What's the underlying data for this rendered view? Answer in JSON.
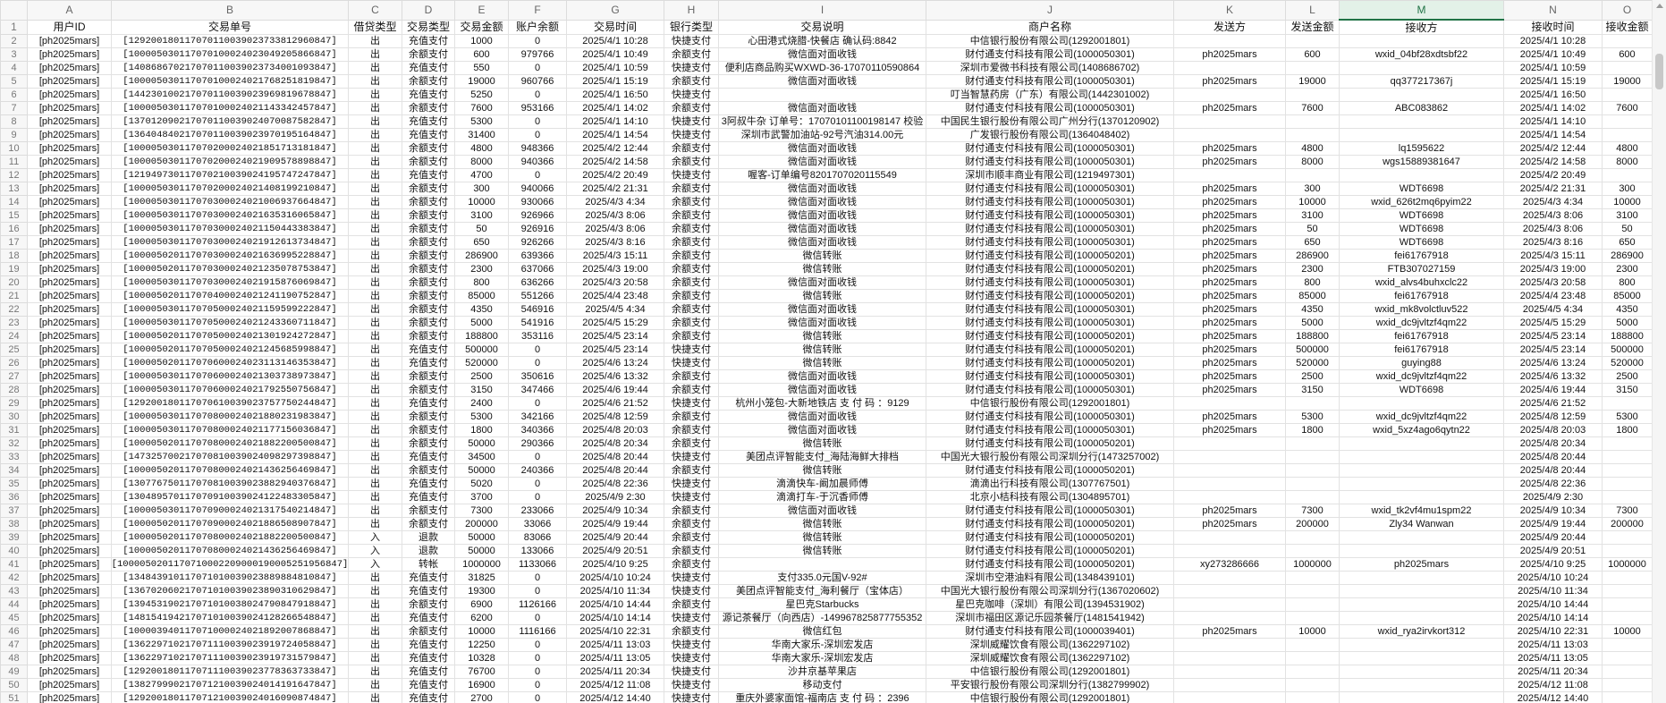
{
  "columns": [
    "A",
    "B",
    "C",
    "D",
    "E",
    "F",
    "G",
    "H",
    "I",
    "J",
    "K",
    "L",
    "M",
    "N",
    "O"
  ],
  "selected_column": "M",
  "accent_color": "#217346",
  "headers": [
    "用户ID",
    "交易单号",
    "借贷类型",
    "交易类型",
    "交易金额",
    "账户余额",
    "交易时间",
    "银行类型",
    "交易说明",
    "商户名称",
    "发送方",
    "发送金额",
    "接收方",
    "接收时间",
    "接收金额"
  ],
  "rows": [
    [
      "[ph2025mars]",
      "[129200180117070110039023733812960847]",
      "出",
      "充值支付",
      "1000",
      "0",
      "2025/4/1 10:28",
      "快捷支付",
      "心田港式烧腊-快餐店 确认码:8842",
      "中信银行股份有限公司(1292001801)",
      "",
      "",
      "",
      "2025/4/1 10:28",
      ""
    ],
    [
      "[ph2025mars]",
      "[100005030117070100024023049205866847]",
      "出",
      "余额支付",
      "600",
      "979766",
      "2025/4/1 10:49",
      "余额支付",
      "微信面对面收钱",
      "财付通支付科技有限公司(1000050301)",
      "ph2025mars",
      "600",
      "wxid_04bf28xdtsbf22",
      "2025/4/1 10:49",
      "600"
    ],
    [
      "[ph2025mars]",
      "[140868670217070110039023734001093847]",
      "出",
      "充值支付",
      "550",
      "0",
      "2025/4/1 10:59",
      "快捷支付",
      "便利店商品购买WXWD-36-17070110590864",
      "深圳市爱微书科技有限公司(1408686702)",
      "",
      "",
      "",
      "2025/4/1 10:59",
      ""
    ],
    [
      "[ph2025mars]",
      "[100005030117070100024021768251819847]",
      "出",
      "余额支付",
      "19000",
      "960766",
      "2025/4/1 15:19",
      "余额支付",
      "微信面对面收钱",
      "财付通支付科技有限公司(1000050301)",
      "ph2025mars",
      "19000",
      "qq377217367j",
      "2025/4/1 15:19",
      "19000"
    ],
    [
      "[ph2025mars]",
      "[144230100217070110039023969819678847]",
      "出",
      "充值支付",
      "5250",
      "0",
      "2025/4/1 16:50",
      "快捷支付",
      "",
      "叮当智慧药房（广东）有限公司(1442301002)",
      "",
      "",
      "",
      "2025/4/1 16:50",
      ""
    ],
    [
      "[ph2025mars]",
      "[100005030117070100024021143342457847]",
      "出",
      "余额支付",
      "7600",
      "953166",
      "2025/4/1 14:02",
      "余额支付",
      "微信面对面收钱",
      "财付通支付科技有限公司(1000050301)",
      "ph2025mars",
      "7600",
      "ABC083862",
      "2025/4/1 14:02",
      "7600"
    ],
    [
      "[ph2025mars]",
      "[137012090217070110039024070087582847]",
      "出",
      "充值支付",
      "5300",
      "0",
      "2025/4/1 14:10",
      "快捷支付",
      "3阿叔牛杂 订单号：17070101100198147 校验",
      "中国民生银行股份有限公司广州分行(1370120902)",
      "",
      "",
      "",
      "2025/4/1 14:10",
      ""
    ],
    [
      "[ph2025mars]",
      "[136404840217070110039023970195164847]",
      "出",
      "充值支付",
      "31400",
      "0",
      "2025/4/1 14:54",
      "快捷支付",
      "深圳市武警加油站-92号汽油314.00元",
      "广发银行股份有限公司(1364048402)",
      "",
      "",
      "",
      "2025/4/1 14:54",
      ""
    ],
    [
      "[ph2025mars]",
      "[100005030117070200024021851713181847]",
      "出",
      "余额支付",
      "4800",
      "948366",
      "2025/4/2 12:44",
      "余额支付",
      "微信面对面收钱",
      "财付通支付科技有限公司(1000050301)",
      "ph2025mars",
      "4800",
      "lq1595622",
      "2025/4/2 12:44",
      "4800"
    ],
    [
      "[ph2025mars]",
      "[100005030117070200024021909578898847]",
      "出",
      "余额支付",
      "8000",
      "940366",
      "2025/4/2 14:58",
      "余额支付",
      "微信面对面收钱",
      "财付通支付科技有限公司(1000050301)",
      "ph2025mars",
      "8000",
      "wgs15889381647",
      "2025/4/2 14:58",
      "8000"
    ],
    [
      "[ph2025mars]",
      "[121949730117070210039024195747247847]",
      "出",
      "充值支付",
      "4700",
      "0",
      "2025/4/2 20:49",
      "快捷支付",
      "喔客-订单编号8201707020115549",
      "深圳市顺丰商业有限公司(1219497301)",
      "",
      "",
      "",
      "2025/4/2 20:49",
      ""
    ],
    [
      "[ph2025mars]",
      "[100005030117070200024021408199210847]",
      "出",
      "余额支付",
      "300",
      "940066",
      "2025/4/2 21:31",
      "余额支付",
      "微信面对面收钱",
      "财付通支付科技有限公司(1000050301)",
      "ph2025mars",
      "300",
      "WDT6698",
      "2025/4/2 21:31",
      "300"
    ],
    [
      "[ph2025mars]",
      "[100005030117070300024021006937664847]",
      "出",
      "余额支付",
      "10000",
      "930066",
      "2025/4/3 4:34",
      "余额支付",
      "微信面对面收钱",
      "财付通支付科技有限公司(1000050301)",
      "ph2025mars",
      "10000",
      "wxid_626t2mq6pyim22",
      "2025/4/3 4:34",
      "10000"
    ],
    [
      "[ph2025mars]",
      "[100005030117070300024021635316065847]",
      "出",
      "余额支付",
      "3100",
      "926966",
      "2025/4/3 8:06",
      "余额支付",
      "微信面对面收钱",
      "财付通支付科技有限公司(1000050301)",
      "ph2025mars",
      "3100",
      "WDT6698",
      "2025/4/3 8:06",
      "3100"
    ],
    [
      "[ph2025mars]",
      "[100005030117070300024021150443383847]",
      "出",
      "余额支付",
      "50",
      "926916",
      "2025/4/3 8:06",
      "余额支付",
      "微信面对面收钱",
      "财付通支付科技有限公司(1000050301)",
      "ph2025mars",
      "50",
      "WDT6698",
      "2025/4/3 8:06",
      "50"
    ],
    [
      "[ph2025mars]",
      "[100005030117070300024021912613734847]",
      "出",
      "余额支付",
      "650",
      "926266",
      "2025/4/3 8:16",
      "余额支付",
      "微信面对面收钱",
      "财付通支付科技有限公司(1000050301)",
      "ph2025mars",
      "650",
      "WDT6698",
      "2025/4/3 8:16",
      "650"
    ],
    [
      "[ph2025mars]",
      "[100005020117070300024021636995228847]",
      "出",
      "余额支付",
      "286900",
      "639366",
      "2025/4/3 15:11",
      "余额支付",
      "微信转账",
      "财付通支付科技有限公司(1000050201)",
      "ph2025mars",
      "286900",
      "fei61767918",
      "2025/4/3 15:11",
      "286900"
    ],
    [
      "[ph2025mars]",
      "[100005020117070300024021235078753847]",
      "出",
      "余额支付",
      "2300",
      "637066",
      "2025/4/3 19:00",
      "余额支付",
      "微信转账",
      "财付通支付科技有限公司(1000050201)",
      "ph2025mars",
      "2300",
      "FTB307027159",
      "2025/4/3 19:00",
      "2300"
    ],
    [
      "[ph2025mars]",
      "[100005030117070300024021915876069847]",
      "出",
      "余额支付",
      "800",
      "636266",
      "2025/4/3 20:58",
      "余额支付",
      "微信面对面收钱",
      "财付通支付科技有限公司(1000050301)",
      "ph2025mars",
      "800",
      "wxid_alvs4buhxclc22",
      "2025/4/3 20:58",
      "800"
    ],
    [
      "[ph2025mars]",
      "[100005020117070400024021241190752847]",
      "出",
      "余额支付",
      "85000",
      "551266",
      "2025/4/4 23:48",
      "余额支付",
      "微信转账",
      "财付通支付科技有限公司(1000050201)",
      "ph2025mars",
      "85000",
      "fei61767918",
      "2025/4/4 23:48",
      "85000"
    ],
    [
      "[ph2025mars]",
      "[100005030117070500024021159599222847]",
      "出",
      "余额支付",
      "4350",
      "546916",
      "2025/4/5 4:34",
      "余额支付",
      "微信面对面收钱",
      "财付通支付科技有限公司(1000050301)",
      "ph2025mars",
      "4350",
      "wxid_mk8volctluv522",
      "2025/4/5 4:34",
      "4350"
    ],
    [
      "[ph2025mars]",
      "[100005030117070500024021243360711847]",
      "出",
      "余额支付",
      "5000",
      "541916",
      "2025/4/5 15:29",
      "余额支付",
      "微信面对面收钱",
      "财付通支付科技有限公司(1000050301)",
      "ph2025mars",
      "5000",
      "wxid_dc9jvltzf4qm22",
      "2025/4/5 15:29",
      "5000"
    ],
    [
      "[ph2025mars]",
      "[100005020117070500024021301924272847]",
      "出",
      "余额支付",
      "188800",
      "353116",
      "2025/4/5 23:14",
      "余额支付",
      "微信转账",
      "财付通支付科技有限公司(1000050201)",
      "ph2025mars",
      "188800",
      "fei61767918",
      "2025/4/5 23:14",
      "188800"
    ],
    [
      "[ph2025mars]",
      "[100005020117070500024021245685998847]",
      "出",
      "充值支付",
      "500000",
      "0",
      "2025/4/5 23:14",
      "快捷支付",
      "微信转账",
      "财付通支付科技有限公司(1000050201)",
      "ph2025mars",
      "500000",
      "fei61767918",
      "2025/4/5 23:14",
      "500000"
    ],
    [
      "[ph2025mars]",
      "[100005020117070600024023113146353847]",
      "出",
      "充值支付",
      "520000",
      "0",
      "2025/4/6 13:24",
      "快捷支付",
      "微信转账",
      "财付通支付科技有限公司(1000050201)",
      "ph2025mars",
      "520000",
      "guying88",
      "2025/4/6 13:24",
      "520000"
    ],
    [
      "[ph2025mars]",
      "[100005030117070600024021303738973847]",
      "出",
      "余额支付",
      "2500",
      "350616",
      "2025/4/6 13:32",
      "余额支付",
      "微信面对面收钱",
      "财付通支付科技有限公司(1000050301)",
      "ph2025mars",
      "2500",
      "wxid_dc9jvltzf4qm22",
      "2025/4/6 13:32",
      "2500"
    ],
    [
      "[ph2025mars]",
      "[100005030117070600024021792550756847]",
      "出",
      "余额支付",
      "3150",
      "347466",
      "2025/4/6 19:44",
      "余额支付",
      "微信面对面收钱",
      "财付通支付科技有限公司(1000050301)",
      "ph2025mars",
      "3150",
      "WDT6698",
      "2025/4/6 19:44",
      "3150"
    ],
    [
      "[ph2025mars]",
      "[129200180117070610039023757750244847]",
      "出",
      "充值支付",
      "2400",
      "0",
      "2025/4/6 21:52",
      "快捷支付",
      "杭州小笼包-大新地铁店 支 付 码 ：9129",
      "中信银行股份有限公司(1292001801)",
      "",
      "",
      "",
      "2025/4/6 21:52",
      ""
    ],
    [
      "[ph2025mars]",
      "[100005030117070800024021880231983847]",
      "出",
      "余额支付",
      "5300",
      "342166",
      "2025/4/8 12:59",
      "余额支付",
      "微信面对面收钱",
      "财付通支付科技有限公司(1000050301)",
      "ph2025mars",
      "5300",
      "wxid_dc9jvltzf4qm22",
      "2025/4/8 12:59",
      "5300"
    ],
    [
      "[ph2025mars]",
      "[100005030117070800024021177156036847]",
      "出",
      "余额支付",
      "1800",
      "340366",
      "2025/4/8 20:03",
      "余额支付",
      "微信面对面收钱",
      "财付通支付科技有限公司(1000050301)",
      "ph2025mars",
      "1800",
      "wxid_5xz4ago6qytn22",
      "2025/4/8 20:03",
      "1800"
    ],
    [
      "[ph2025mars]",
      "[100005020117070800024021882200500847]",
      "出",
      "余额支付",
      "50000",
      "290366",
      "2025/4/8 20:34",
      "余额支付",
      "微信转账",
      "财付通支付科技有限公司(1000050201)",
      "",
      "",
      "",
      "2025/4/8 20:34",
      ""
    ],
    [
      "[ph2025mars]",
      "[147325700217070810039024098297398847]",
      "出",
      "充值支付",
      "34500",
      "0",
      "2025/4/8 20:44",
      "快捷支付",
      "美团点评智能支付_海陆海鲜大排档",
      "中国光大银行股份有限公司深圳分行(1473257002)",
      "",
      "",
      "",
      "2025/4/8 20:44",
      ""
    ],
    [
      "[ph2025mars]",
      "[100005020117070800024021436256469847]",
      "出",
      "余额支付",
      "50000",
      "240366",
      "2025/4/8 20:44",
      "余额支付",
      "微信转账",
      "财付通支付科技有限公司(1000050201)",
      "",
      "",
      "",
      "2025/4/8 20:44",
      ""
    ],
    [
      "[ph2025mars]",
      "[130776750117070810039023882940376847]",
      "出",
      "充值支付",
      "5020",
      "0",
      "2025/4/8 22:36",
      "快捷支付",
      "滴滴快车-阚加晨师傅",
      "滴滴出行科技有限公司(1307767501)",
      "",
      "",
      "",
      "2025/4/8 22:36",
      ""
    ],
    [
      "[ph2025mars]",
      "[130489570117070910039024122483305847]",
      "出",
      "充值支付",
      "3700",
      "0",
      "2025/4/9 2:30",
      "快捷支付",
      "滴滴打车-于沉香师傅",
      "北京小桔科技有限公司(1304895701)",
      "",
      "",
      "",
      "2025/4/9 2:30",
      ""
    ],
    [
      "[ph2025mars]",
      "[100005030117070900024021317540214847]",
      "出",
      "余额支付",
      "7300",
      "233066",
      "2025/4/9 10:34",
      "余额支付",
      "微信面对面收钱",
      "财付通支付科技有限公司(1000050301)",
      "ph2025mars",
      "7300",
      "wxid_tk2vf4mu1spm22",
      "2025/4/9 10:34",
      "7300"
    ],
    [
      "[ph2025mars]",
      "[100005020117070900024021886508907847]",
      "出",
      "余额支付",
      "200000",
      "33066",
      "2025/4/9 19:44",
      "余额支付",
      "微信转账",
      "财付通支付科技有限公司(1000050201)",
      "ph2025mars",
      "200000",
      "Zly34 Wanwan",
      "2025/4/9 19:44",
      "200000"
    ],
    [
      "[ph2025mars]",
      "[100005020117070800024021882200500847]",
      "入",
      "退款",
      "50000",
      "83066",
      "2025/4/9 20:44",
      "余额支付",
      "微信转账",
      "财付通支付科技有限公司(1000050201)",
      "",
      "",
      "",
      "2025/4/9 20:44",
      ""
    ],
    [
      "[ph2025mars]",
      "[100005020117070800024021436256469847]",
      "入",
      "退款",
      "50000",
      "133066",
      "2025/4/9 20:51",
      "余额支付",
      "微信转账",
      "财付通支付科技有限公司(1000050201)",
      "",
      "",
      "",
      "2025/4/9 20:51",
      ""
    ],
    [
      "[ph2025mars]",
      "[1000050201170710002209000190005251956847]",
      "入",
      "转帐",
      "1000000",
      "1133066",
      "2025/4/10 9:25",
      "余额支付",
      "",
      "财付通支付科技有限公司(1000050201)",
      "xy273286666",
      "1000000",
      "ph2025mars",
      "2025/4/10 9:25",
      "1000000"
    ],
    [
      "[ph2025mars]",
      "[134843910117071010039023889884810847]",
      "出",
      "充值支付",
      "31825",
      "0",
      "2025/4/10 10:24",
      "快捷支付",
      "支付335.0元国V-92#",
      "深圳市空港油料有限公司(1348439101)",
      "",
      "",
      "",
      "2025/4/10 10:24",
      ""
    ],
    [
      "[ph2025mars]",
      "[136702060217071010039023890310629847]",
      "出",
      "充值支付",
      "19300",
      "0",
      "2025/4/10 11:34",
      "快捷支付",
      "美团点评智能支付_海利餐厅（宝体店）",
      "中国光大银行股份有限公司深圳分行(1367020602)",
      "",
      "",
      "",
      "2025/4/10 11:34",
      ""
    ],
    [
      "[ph2025mars]",
      "[139453190217071010038024790847918847]",
      "出",
      "余额支付",
      "6900",
      "1126166",
      "2025/4/10 14:44",
      "余额支付",
      "星巴克Starbucks",
      "星巴克咖啡（深圳）有限公司(1394531902)",
      "",
      "",
      "",
      "2025/4/10 14:44",
      ""
    ],
    [
      "[ph2025mars]",
      "[148154194217071010039024128266548847]",
      "出",
      "充值支付",
      "6200",
      "0",
      "2025/4/10 14:14",
      "快捷支付",
      "源记茶餐厅（向西店）-149967825877755352",
      "深圳市福田区源记乐园茶餐厅(1481541942)",
      "",
      "",
      "",
      "2025/4/10 14:14",
      ""
    ],
    [
      "[ph2025mars]",
      "[100003940117071000024021892007868847]",
      "出",
      "余额支付",
      "10000",
      "1116166",
      "2025/4/10 22:31",
      "余额支付",
      "微信红包",
      "财付通支付科技有限公司(1000039401)",
      "ph2025mars",
      "10000",
      "wxid_rya2irvkort312",
      "2025/4/10 22:31",
      "10000"
    ],
    [
      "[ph2025mars]",
      "[136229710217071110039023919724058847]",
      "出",
      "充值支付",
      "12250",
      "0",
      "2025/4/11 13:03",
      "快捷支付",
      "华南大家乐-深圳宏发店",
      "深圳威耀饮食有限公司(1362297102)",
      "",
      "",
      "",
      "2025/4/11 13:03",
      ""
    ],
    [
      "[ph2025mars]",
      "[136229710217071110039023919731579847]",
      "出",
      "充值支付",
      "10328",
      "0",
      "2025/4/11 13:05",
      "快捷支付",
      "华南大家乐-深圳宏发店",
      "深圳威耀饮食有限公司(1362297102)",
      "",
      "",
      "",
      "2025/4/11 13:05",
      ""
    ],
    [
      "[ph2025mars]",
      "[129200180117071110039023778363733847]",
      "出",
      "充值支付",
      "76700",
      "0",
      "2025/4/11 20:34",
      "快捷支付",
      "沙井京基苹果店",
      "中信银行股份有限公司(1292001801)",
      "",
      "",
      "",
      "2025/4/11 20:34",
      ""
    ],
    [
      "[ph2025mars]",
      "[138279990217071210039024014191647847]",
      "出",
      "充值支付",
      "16900",
      "0",
      "2025/4/12 11:08",
      "快捷支付",
      "移动支付",
      "平安银行股份有限公司深圳分行(1382799902)",
      "",
      "",
      "",
      "2025/4/12 11:08",
      ""
    ],
    [
      "[ph2025mars]",
      "[129200180117071210039024016090874847]",
      "出",
      "充值支付",
      "2700",
      "0",
      "2025/4/12 14:40",
      "快捷支付",
      "重庆外婆家面馆-福南店 支 付 码 ：2396",
      "中信银行股份有限公司(1292001801)",
      "",
      "",
      "",
      "2025/4/12 14:40",
      ""
    ]
  ]
}
